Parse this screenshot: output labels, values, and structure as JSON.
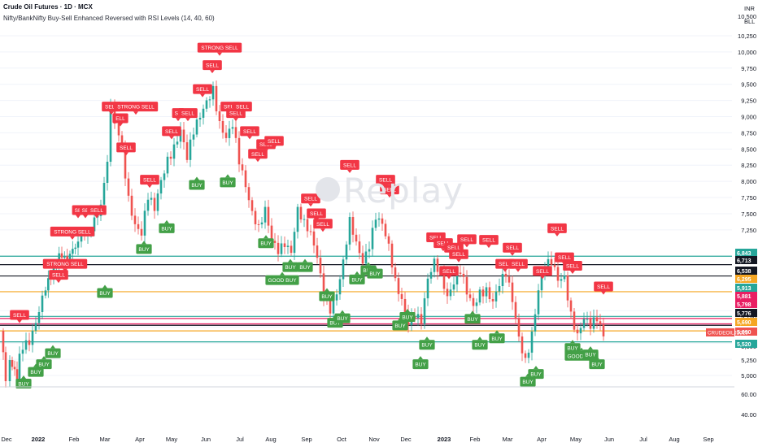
{
  "header": {
    "title": "Crude Oil Futures · 1D · MCX",
    "indicator": "Nifty/BankNifty Buy-Sell Enhanced Reversed with RSI Levels (14, 40, 60)"
  },
  "axis_top_labels": [
    "INR",
    "BLL"
  ],
  "watermark": "Replay",
  "colors": {
    "up": "#26a69a",
    "down": "#ef5350",
    "sell_box": "#f23645",
    "buy_box": "#43a047",
    "line_teal": "#26a69a",
    "line_orange": "#f5a623",
    "line_black": "#131722",
    "line_pink": "#e91e63"
  },
  "chart_data": {
    "type": "candlestick",
    "x_tick_labels": [
      "Dec",
      "2022",
      "Feb",
      "Mar",
      "Apr",
      "May",
      "Jun",
      "Jul",
      "Aug",
      "Sep",
      "Oct",
      "Nov",
      "Dec",
      "2023",
      "Feb",
      "Mar",
      "Apr",
      "May",
      "Jun",
      "Jul",
      "Aug",
      "Sep"
    ],
    "y_ticks": [
      10250,
      10000,
      9750,
      9500,
      9250,
      9000,
      8750,
      8500,
      8250,
      8000,
      7750,
      7500,
      7250,
      6000,
      5750,
      5500,
      5250,
      5000
    ],
    "y_extra_ticks": [
      "10,500",
      "60.00",
      "40.00"
    ],
    "ylim": [
      4900,
      10500
    ],
    "price_levels": [
      {
        "label": "6,843",
        "value": 6843,
        "kind": "teal"
      },
      {
        "label": "6,713",
        "value": 6713,
        "kind": "black"
      },
      {
        "label": "6,538",
        "value": 6538,
        "kind": "black"
      },
      {
        "label": "6,295",
        "value": 6295,
        "kind": "orange"
      },
      {
        "label": "5,913",
        "value": 5913,
        "kind": "teal"
      },
      {
        "label": "5,881",
        "value": 5881,
        "kind": "pink"
      },
      {
        "label": "5,798",
        "value": 5798,
        "kind": "pink"
      },
      {
        "label": "5,776",
        "value": 5776,
        "kind": "black"
      },
      {
        "label": "5,690",
        "value": 5690,
        "kind": "orange"
      },
      {
        "label": "5,690",
        "value": 5690,
        "kind": "red"
      },
      {
        "label": "5,520",
        "value": 5520,
        "kind": "teal"
      }
    ],
    "last_price_tag": "CRUDEOILJ2025",
    "series": [
      {
        "t": 0,
        "c": 5690
      },
      {
        "t": 3,
        "c": 5300
      },
      {
        "t": 8,
        "c": 5050
      },
      {
        "t": 14,
        "c": 5200
      },
      {
        "t": 20,
        "c": 5050
      },
      {
        "t": 28,
        "c": 5450
      },
      {
        "t": 36,
        "c": 5600
      },
      {
        "t": 44,
        "c": 5900
      },
      {
        "t": 52,
        "c": 6200
      },
      {
        "t": 62,
        "c": 6600
      },
      {
        "t": 72,
        "c": 6900
      },
      {
        "t": 82,
        "c": 6700
      },
      {
        "t": 92,
        "c": 7000
      },
      {
        "t": 100,
        "c": 7200
      },
      {
        "t": 108,
        "c": 7100
      },
      {
        "t": 116,
        "c": 7300
      },
      {
        "t": 124,
        "c": 7600
      },
      {
        "t": 132,
        "c": 8400
      },
      {
        "t": 137,
        "c": 9200
      },
      {
        "t": 142,
        "c": 8900
      },
      {
        "t": 150,
        "c": 8500
      },
      {
        "t": 158,
        "c": 7800
      },
      {
        "t": 166,
        "c": 7400
      },
      {
        "t": 174,
        "c": 7200
      },
      {
        "t": 182,
        "c": 7700
      },
      {
        "t": 190,
        "c": 7500
      },
      {
        "t": 198,
        "c": 8000
      },
      {
        "t": 206,
        "c": 8400
      },
      {
        "t": 214,
        "c": 8600
      },
      {
        "t": 222,
        "c": 8800
      },
      {
        "t": 230,
        "c": 8300
      },
      {
        "t": 238,
        "c": 8700
      },
      {
        "t": 246,
        "c": 9000
      },
      {
        "t": 254,
        "c": 9300
      },
      {
        "t": 262,
        "c": 9500
      },
      {
        "t": 270,
        "c": 8900
      },
      {
        "t": 278,
        "c": 8600
      },
      {
        "t": 286,
        "c": 8800
      },
      {
        "t": 294,
        "c": 8300
      },
      {
        "t": 302,
        "c": 8000
      },
      {
        "t": 310,
        "c": 7600
      },
      {
        "t": 318,
        "c": 7300
      },
      {
        "t": 326,
        "c": 7500
      },
      {
        "t": 334,
        "c": 7000
      },
      {
        "t": 342,
        "c": 6900
      },
      {
        "t": 350,
        "c": 7100
      },
      {
        "t": 358,
        "c": 7000
      },
      {
        "t": 366,
        "c": 7600
      },
      {
        "t": 374,
        "c": 7300
      },
      {
        "t": 382,
        "c": 7100
      },
      {
        "t": 390,
        "c": 6800
      },
      {
        "t": 398,
        "c": 6300
      },
      {
        "t": 406,
        "c": 6100
      },
      {
        "t": 414,
        "c": 6300
      },
      {
        "t": 422,
        "c": 6700
      },
      {
        "t": 430,
        "c": 7300
      },
      {
        "t": 438,
        "c": 7000
      },
      {
        "t": 446,
        "c": 6800
      },
      {
        "t": 454,
        "c": 7100
      },
      {
        "t": 462,
        "c": 7500
      },
      {
        "t": 470,
        "c": 7300
      },
      {
        "t": 478,
        "c": 6900
      },
      {
        "t": 486,
        "c": 6400
      },
      {
        "t": 494,
        "c": 6200
      },
      {
        "t": 502,
        "c": 5900
      },
      {
        "t": 510,
        "c": 6000
      },
      {
        "t": 518,
        "c": 5800
      },
      {
        "t": 526,
        "c": 6400
      },
      {
        "t": 534,
        "c": 6700
      },
      {
        "t": 542,
        "c": 6600
      },
      {
        "t": 550,
        "c": 6300
      },
      {
        "t": 558,
        "c": 6500
      },
      {
        "t": 566,
        "c": 6600
      },
      {
        "t": 574,
        "c": 6200
      },
      {
        "t": 582,
        "c": 6000
      },
      {
        "t": 590,
        "c": 6300
      },
      {
        "t": 598,
        "c": 6400
      },
      {
        "t": 606,
        "c": 6200
      },
      {
        "t": 614,
        "c": 6400
      },
      {
        "t": 622,
        "c": 6500
      },
      {
        "t": 630,
        "c": 6100
      },
      {
        "t": 638,
        "c": 5600
      },
      {
        "t": 646,
        "c": 5300
      },
      {
        "t": 654,
        "c": 5700
      },
      {
        "t": 662,
        "c": 6300
      },
      {
        "t": 670,
        "c": 6600
      },
      {
        "t": 678,
        "c": 6700
      },
      {
        "t": 686,
        "c": 6500
      },
      {
        "t": 694,
        "c": 6600
      },
      {
        "t": 702,
        "c": 6000
      },
      {
        "t": 710,
        "c": 5600
      },
      {
        "t": 718,
        "c": 5800
      },
      {
        "t": 726,
        "c": 5700
      },
      {
        "t": 734,
        "c": 5900
      },
      {
        "t": 742,
        "c": 5700
      }
    ],
    "signals": [
      {
        "type": "sell",
        "label": "SELL",
        "t": 20,
        "v": 5860
      },
      {
        "type": "sell",
        "label": "STRONG SELL",
        "t": 76,
        "v": 6650
      },
      {
        "type": "sell",
        "label": "SELL",
        "t": 68,
        "v": 6480
      },
      {
        "type": "sell",
        "label": "STRONG SELL",
        "t": 85,
        "v": 7150
      },
      {
        "type": "sell",
        "label": "SE",
        "t": 92,
        "v": 7480
      },
      {
        "type": "sell",
        "label": "SE",
        "t": 101,
        "v": 7480
      },
      {
        "type": "sell",
        "label": "SELL",
        "t": 115,
        "v": 7480
      },
      {
        "type": "sell",
        "label": "SELL",
        "t": 133,
        "v": 9080
      },
      {
        "type": "sell",
        "label": "ELL",
        "t": 144,
        "v": 8900
      },
      {
        "type": "sell",
        "label": "STRONG SELL",
        "t": 163,
        "v": 9080
      },
      {
        "type": "sell",
        "label": "SELL",
        "t": 151,
        "v": 8450
      },
      {
        "type": "sell",
        "label": "SELL",
        "t": 180,
        "v": 7950
      },
      {
        "type": "sell",
        "label": "SELL",
        "t": 207,
        "v": 8700
      },
      {
        "type": "sell",
        "label": "SE",
        "t": 215,
        "v": 8980
      },
      {
        "type": "sell",
        "label": "SELL",
        "t": 227,
        "v": 8980
      },
      {
        "type": "sell",
        "label": "SELL",
        "t": 245,
        "v": 9350
      },
      {
        "type": "sell",
        "label": "SELL",
        "t": 257,
        "v": 9720
      },
      {
        "type": "sell",
        "label": "STRONG SELL",
        "t": 266,
        "v": 9990
      },
      {
        "type": "sell",
        "label": "SELL",
        "t": 279,
        "v": 9080
      },
      {
        "type": "sell",
        "label": "SELL",
        "t": 286,
        "v": 8980
      },
      {
        "type": "sell",
        "label": "SELL",
        "t": 294,
        "v": 9080
      },
      {
        "type": "sell",
        "label": "SELL",
        "t": 303,
        "v": 8700
      },
      {
        "type": "sell",
        "label": "SELL",
        "t": 313,
        "v": 8350
      },
      {
        "type": "sell",
        "label": "SELL",
        "t": 323,
        "v": 8500
      },
      {
        "type": "sell",
        "label": "SELL",
        "t": 333,
        "v": 8550
      },
      {
        "type": "sell",
        "label": "SELL",
        "t": 378,
        "v": 7660
      },
      {
        "type": "sell",
        "label": "SELL",
        "t": 385,
        "v": 7430
      },
      {
        "type": "sell",
        "label": "SELL",
        "t": 393,
        "v": 7270
      },
      {
        "type": "sell",
        "label": "SELL",
        "t": 426,
        "v": 8180
      },
      {
        "type": "sell",
        "label": "SELL",
        "t": 470,
        "v": 7950
      },
      {
        "type": "sell",
        "label": "SELL",
        "t": 475,
        "v": 7800
      },
      {
        "type": "sell",
        "label": "SELL",
        "t": 532,
        "v": 7060
      },
      {
        "type": "sell",
        "label": "SELL",
        "t": 541,
        "v": 6970
      },
      {
        "type": "sell",
        "label": "SELL",
        "t": 554,
        "v": 6900
      },
      {
        "type": "sell",
        "label": "SELL",
        "t": 548,
        "v": 6540
      },
      {
        "type": "sell",
        "label": "SELL",
        "t": 560,
        "v": 6800
      },
      {
        "type": "sell",
        "label": "SELL",
        "t": 570,
        "v": 7030
      },
      {
        "type": "sell",
        "label": "SELL",
        "t": 597,
        "v": 7020
      },
      {
        "type": "sell",
        "label": "SELL",
        "t": 617,
        "v": 6650
      },
      {
        "type": "sell",
        "label": "SELL",
        "t": 626,
        "v": 6900
      },
      {
        "type": "sell",
        "label": "SELL",
        "t": 633,
        "v": 6650
      },
      {
        "type": "sell",
        "label": "SELL",
        "t": 663,
        "v": 6540
      },
      {
        "type": "sell",
        "label": "SELL",
        "t": 681,
        "v": 7200
      },
      {
        "type": "sell",
        "label": "SELL",
        "t": 690,
        "v": 6750
      },
      {
        "type": "sell",
        "label": "SELL",
        "t": 700,
        "v": 6620
      },
      {
        "type": "sell",
        "label": "SELL",
        "t": 738,
        "v": 6300
      },
      {
        "type": "buy",
        "label": "BUY",
        "t": 25,
        "v": 4950
      },
      {
        "type": "buy",
        "label": "BUY",
        "t": 40,
        "v": 5130
      },
      {
        "type": "buy",
        "label": "BUY",
        "t": 50,
        "v": 5250
      },
      {
        "type": "buy",
        "label": "BUY",
        "t": 61,
        "v": 5420
      },
      {
        "type": "buy",
        "label": "BUY",
        "t": 125,
        "v": 6350
      },
      {
        "type": "buy",
        "label": "BUY",
        "t": 173,
        "v": 7030
      },
      {
        "type": "buy",
        "label": "BUY",
        "t": 201,
        "v": 7350
      },
      {
        "type": "buy",
        "label": "BUY",
        "t": 238,
        "v": 8020
      },
      {
        "type": "buy",
        "label": "BUY",
        "t": 276,
        "v": 8060
      },
      {
        "type": "buy",
        "label": "BUY",
        "t": 323,
        "v": 7120
      },
      {
        "type": "buy",
        "label": "BUY",
        "t": 353,
        "v": 6750
      },
      {
        "type": "buy",
        "label": "BUY",
        "t": 371,
        "v": 6750
      },
      {
        "type": "buy",
        "label": "GOOD BUY",
        "t": 343,
        "v": 6550
      },
      {
        "type": "buy",
        "label": "BUY",
        "t": 398,
        "v": 6300
      },
      {
        "type": "buy",
        "label": "BUY",
        "t": 408,
        "v": 5890
      },
      {
        "type": "buy",
        "label": "BUY",
        "t": 417,
        "v": 5960
      },
      {
        "type": "buy",
        "label": "BUY",
        "t": 435,
        "v": 6560
      },
      {
        "type": "buy",
        "label": "BUY",
        "t": 449,
        "v": 6700
      },
      {
        "type": "buy",
        "label": "BUY",
        "t": 457,
        "v": 6650
      },
      {
        "type": "buy",
        "label": "BUY",
        "t": 488,
        "v": 5850
      },
      {
        "type": "buy",
        "label": "BUY",
        "t": 497,
        "v": 5980
      },
      {
        "type": "buy",
        "label": "BUY",
        "t": 513,
        "v": 5250
      },
      {
        "type": "buy",
        "label": "BUY",
        "t": 521,
        "v": 5550
      },
      {
        "type": "buy",
        "label": "BUY",
        "t": 577,
        "v": 5950
      },
      {
        "type": "buy",
        "label": "BUY",
        "t": 586,
        "v": 5550
      },
      {
        "type": "buy",
        "label": "BUY",
        "t": 607,
        "v": 5650
      },
      {
        "type": "buy",
        "label": "BUY",
        "t": 645,
        "v": 4980
      },
      {
        "type": "buy",
        "label": "BUY",
        "t": 655,
        "v": 5100
      },
      {
        "type": "buy",
        "label": "BUY",
        "t": 700,
        "v": 5500
      },
      {
        "type": "buy",
        "label": "GOOD BUY",
        "t": 711,
        "v": 5380
      },
      {
        "type": "buy",
        "label": "BUY",
        "t": 722,
        "v": 5400
      },
      {
        "type": "buy",
        "label": "BUY",
        "t": 730,
        "v": 5250
      }
    ]
  }
}
